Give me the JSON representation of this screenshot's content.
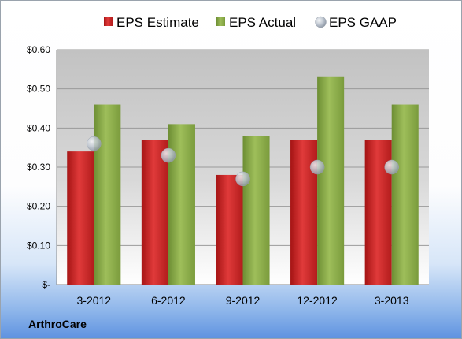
{
  "chart_data": {
    "type": "bar",
    "categories": [
      "3-2012",
      "6-2012",
      "9-2012",
      "12-2012",
      "3-2013"
    ],
    "series": [
      {
        "name": "EPS Estimate",
        "kind": "bar",
        "color": "#d42b2b",
        "values": [
          0.34,
          0.37,
          0.28,
          0.37,
          0.37
        ]
      },
      {
        "name": "EPS Actual",
        "kind": "bar",
        "color": "#8aac4a",
        "values": [
          0.46,
          0.41,
          0.38,
          0.53,
          0.46
        ]
      },
      {
        "name": "EPS GAAP",
        "kind": "marker",
        "color": "#b9c1cc",
        "values": [
          0.36,
          0.33,
          0.27,
          0.3,
          0.3
        ]
      }
    ],
    "yticks": [
      0,
      0.1,
      0.2,
      0.3,
      0.4,
      0.5,
      0.6
    ],
    "ytick_labels": [
      "$-",
      "$0.10",
      "$0.20",
      "$0.30",
      "$0.40",
      "$0.50",
      "$0.60"
    ],
    "ylim": [
      0,
      0.6
    ],
    "grid": true,
    "legend_position": "top"
  },
  "footer": {
    "company": "ArthroCare"
  }
}
